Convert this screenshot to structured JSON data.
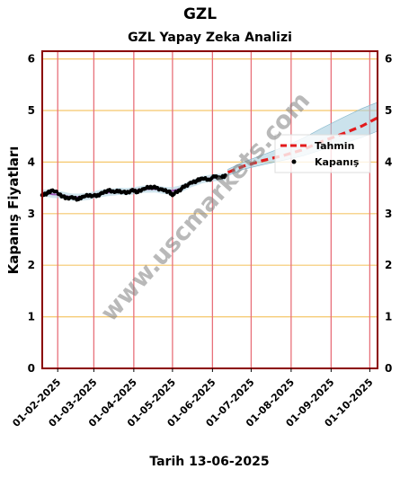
{
  "header": {
    "ticker": "GZL",
    "subtitle": "GZL Yapay Zeka Analizi",
    "footer": "Tarih 13-06-2025"
  },
  "watermark": "www.uscmarkets.com",
  "colors": {
    "actual": "#000000",
    "forecast": "#e31a1c",
    "band": "#a9cfe0",
    "smooth": "#9b59b6",
    "hgrid": "#f5c76b",
    "vgrid": "#e8707a",
    "frame": "#8b0000"
  },
  "chart_data": {
    "type": "line",
    "title": "GZL Yapay Zeka Analizi",
    "xlabel": "Tarih 13-06-2025",
    "ylabel": "Kapanış Fiyatları",
    "ylim": [
      0,
      6.15
    ],
    "xlim": [
      "2025-01-20",
      "2025-10-07"
    ],
    "y_ticks": [
      0,
      1,
      2,
      3,
      4,
      5,
      6
    ],
    "x_ticks": [
      "01-02-2025",
      "01-03-2025",
      "01-04-2025",
      "01-05-2025",
      "01-06-2025",
      "01-07-2025",
      "01-08-2025",
      "01-09-2025",
      "01-10-2025"
    ],
    "grid": true,
    "legend_position": "right",
    "series": [
      {
        "name": "Tahmin",
        "style": "dashed",
        "x": [
          "2025-06-13",
          "2025-06-25",
          "2025-07-10",
          "2025-07-25",
          "2025-08-10",
          "2025-08-25",
          "2025-09-10",
          "2025-09-25",
          "2025-10-07"
        ],
        "y": [
          3.8,
          3.92,
          4.03,
          4.12,
          4.24,
          4.4,
          4.55,
          4.7,
          4.86
        ],
        "band_upper": [
          3.86,
          4.0,
          4.14,
          4.28,
          4.46,
          4.66,
          4.86,
          5.04,
          5.16
        ],
        "band_lower": [
          3.74,
          3.86,
          3.95,
          4.03,
          4.12,
          4.24,
          4.36,
          4.48,
          4.6
        ]
      },
      {
        "name": "Kapanış",
        "style": "points",
        "x": [
          "2025-01-20",
          "2025-01-24",
          "2025-01-28",
          "2025-02-03",
          "2025-02-07",
          "2025-02-12",
          "2025-02-17",
          "2025-02-21",
          "2025-02-26",
          "2025-03-03",
          "2025-03-07",
          "2025-03-12",
          "2025-03-17",
          "2025-03-21",
          "2025-03-26",
          "2025-03-31",
          "2025-04-04",
          "2025-04-09",
          "2025-04-14",
          "2025-04-18",
          "2025-04-23",
          "2025-04-28",
          "2025-05-01",
          "2025-05-06",
          "2025-05-10",
          "2025-05-15",
          "2025-05-20",
          "2025-05-24",
          "2025-05-29",
          "2025-06-03",
          "2025-06-07",
          "2025-06-11"
        ],
        "y": [
          3.36,
          3.4,
          3.45,
          3.37,
          3.3,
          3.32,
          3.28,
          3.33,
          3.36,
          3.34,
          3.4,
          3.45,
          3.42,
          3.44,
          3.4,
          3.46,
          3.42,
          3.48,
          3.52,
          3.5,
          3.47,
          3.43,
          3.36,
          3.45,
          3.52,
          3.6,
          3.64,
          3.68,
          3.66,
          3.72,
          3.7,
          3.74
        ]
      }
    ]
  }
}
